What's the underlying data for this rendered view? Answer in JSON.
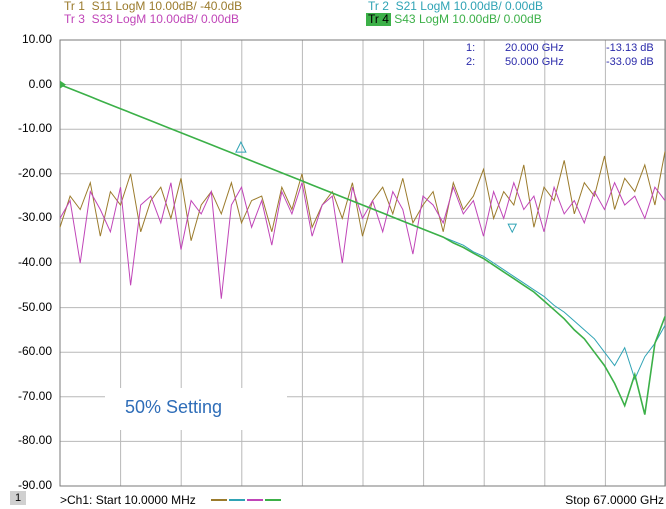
{
  "traces": [
    {
      "id": "tr1",
      "label": "Tr 1",
      "param": "S11",
      "format": "LogM 10.00dB/ -40.0dB",
      "color": "#9b7b2c"
    },
    {
      "id": "tr2",
      "label": "Tr 2",
      "param": "S21",
      "format": "LogM 10.00dB/ 0.00dB",
      "color": "#2fa3b5"
    },
    {
      "id": "tr3",
      "label": "Tr 3",
      "param": "S33",
      "format": "LogM 10.00dB/ 0.00dB",
      "color": "#c045b8"
    },
    {
      "id": "tr4",
      "label": "Tr 4",
      "param": "S43",
      "format": "LogM 10.00dB/ 0.00dB",
      "color": "#3cb048",
      "active": true
    }
  ],
  "markers": [
    {
      "num": "1:",
      "freq": "20.000 GHz",
      "value": "-13.13 dB"
    },
    {
      "num": "2:",
      "freq": "50.000 GHz",
      "value": "-33.09 dB"
    }
  ],
  "y_axis": [
    "10.00",
    "0.00",
    "-10.00",
    "-20.00",
    "-30.00",
    "-40.00",
    "-50.00",
    "-60.00",
    "-70.00",
    "-80.00",
    "-90.00"
  ],
  "callout": "50% Setting",
  "footer": {
    "channel": "1",
    "start": ">Ch1: Start  10.0000 MHz",
    "stop": "Stop  67.0000 GHz"
  },
  "chart_data": {
    "type": "line",
    "xlim": [
      0.01,
      67
    ],
    "ylim": [
      -90,
      10
    ],
    "series": [
      {
        "name": "S11",
        "y": [
          -32,
          -25,
          -28,
          -22,
          -34,
          -24,
          -27,
          -20,
          -33,
          -26,
          -23,
          -30,
          -21,
          -35,
          -27,
          -24,
          -29,
          -22,
          -31,
          -26,
          -25,
          -33,
          -23,
          -28,
          -20,
          -32,
          -27,
          -24,
          -30,
          -22,
          -34,
          -26,
          -23,
          -29,
          -21,
          -31,
          -27,
          -24,
          -33,
          -22,
          -28,
          -25,
          -19,
          -30,
          -24,
          -27,
          -18,
          -32,
          -23,
          -26,
          -17,
          -29,
          -22,
          -25,
          -16,
          -28,
          -21,
          -24,
          -18,
          -27,
          -15
        ]
      },
      {
        "name": "S21",
        "y": [
          0,
          -0.9,
          -1.8,
          -2.7,
          -3.6,
          -4.5,
          -5.4,
          -6.3,
          -7.2,
          -8.1,
          -9.0,
          -9.9,
          -10.8,
          -11.7,
          -12.6,
          -13.5,
          -14.4,
          -15.3,
          -16.2,
          -17.1,
          -18.0,
          -18.9,
          -19.8,
          -20.7,
          -21.6,
          -22.5,
          -23.4,
          -24.3,
          -25.2,
          -26.1,
          -27.0,
          -27.9,
          -28.8,
          -29.7,
          -30.6,
          -31.5,
          -32.4,
          -33.3,
          -34.2,
          -35.1,
          -36.0,
          -37.5,
          -38.5,
          -40.0,
          -41.5,
          -43.0,
          -44.5,
          -46.0,
          -47.5,
          -49.5,
          -51.0,
          -53.0,
          -55.0,
          -57.0,
          -60.0,
          -63.0,
          -59.0,
          -66.0,
          -61.0,
          -58.0,
          -54.0
        ]
      },
      {
        "name": "S33",
        "y": [
          -30,
          -26,
          -40,
          -24,
          -28,
          -33,
          -23,
          -45,
          -27,
          -25,
          -31,
          -22,
          -37,
          -26,
          -29,
          -24,
          -48,
          -27,
          -23,
          -32,
          -26,
          -36,
          -24,
          -29,
          -22,
          -34,
          -27,
          -25,
          -40,
          -23,
          -30,
          -26,
          -33,
          -24,
          -28,
          -38,
          -25,
          -27,
          -31,
          -23,
          -29,
          -26,
          -34,
          -24,
          -30,
          -22,
          -28,
          -25,
          -33,
          -23,
          -29,
          -26,
          -31,
          -24,
          -28,
          -22,
          -27,
          -25,
          -30,
          -23,
          -26
        ]
      },
      {
        "name": "S43",
        "y": [
          0,
          -0.9,
          -1.8,
          -2.7,
          -3.6,
          -4.5,
          -5.4,
          -6.3,
          -7.2,
          -8.1,
          -9.0,
          -9.9,
          -10.8,
          -11.7,
          -12.6,
          -13.5,
          -14.4,
          -15.3,
          -16.2,
          -17.1,
          -18.0,
          -18.9,
          -19.8,
          -20.7,
          -21.6,
          -22.5,
          -23.4,
          -24.3,
          -25.2,
          -26.1,
          -27.0,
          -27.9,
          -28.8,
          -29.7,
          -30.6,
          -31.5,
          -32.4,
          -33.3,
          -34.2,
          -35.5,
          -36.5,
          -37.8,
          -39.0,
          -40.5,
          -42.0,
          -43.5,
          -45.0,
          -46.5,
          -48.5,
          -50.5,
          -52.5,
          -55.0,
          -57.0,
          -60.0,
          -63.0,
          -67.0,
          -72.0,
          -65.0,
          -74.0,
          -58.0,
          -52.0
        ]
      }
    ]
  }
}
